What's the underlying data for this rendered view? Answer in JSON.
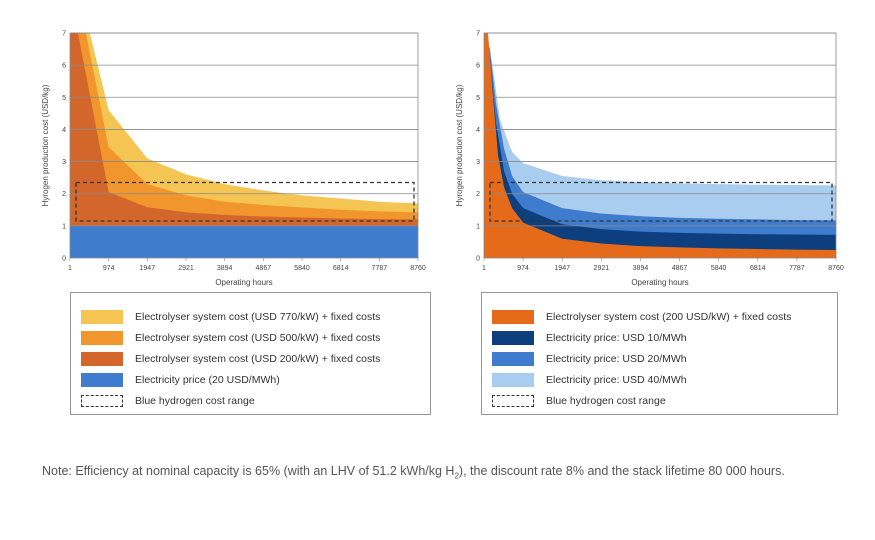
{
  "chart_data": [
    {
      "type": "area",
      "ylabel": "Hyrogen production cost (USD/kg)",
      "xlabel": "Operating hours",
      "ylim": [
        0,
        7
      ],
      "xlim": [
        1,
        8760
      ],
      "x_ticks": [
        "1",
        "974",
        "1947",
        "2921",
        "3894",
        "4867",
        "5840",
        "6814",
        "7787",
        "8760"
      ],
      "y_ticks": [
        "0",
        "1",
        "2",
        "3",
        "4",
        "5",
        "6",
        "7"
      ],
      "grid": true,
      "series": [
        {
          "name": "Electrolyser system cost (USD 770/kW) + fixed costs",
          "color": "#f4c552",
          "x": [
            1,
            500,
            974,
            1947,
            2921,
            3894,
            4867,
            5840,
            6814,
            7787,
            8760
          ],
          "values": [
            7.0,
            7.0,
            4.6,
            3.1,
            2.6,
            2.3,
            2.1,
            1.95,
            1.85,
            1.75,
            1.7
          ]
        },
        {
          "name": "Electrolyser system cost (USD 500/kW) + fixed costs",
          "color": "#f0962d",
          "x": [
            1,
            400,
            974,
            1947,
            2921,
            3894,
            4867,
            5840,
            6814,
            7787,
            8760
          ],
          "values": [
            7.0,
            7.0,
            3.45,
            2.3,
            1.95,
            1.75,
            1.65,
            1.57,
            1.5,
            1.45,
            1.42
          ]
        },
        {
          "name": "Electrolyser system cost (USD 200/kW) + fixed costs",
          "color": "#d3662a",
          "x": [
            1,
            200,
            974,
            1947,
            2921,
            3894,
            4867,
            5840,
            6814,
            7787,
            8760
          ],
          "values": [
            7.0,
            7.0,
            2.05,
            1.58,
            1.42,
            1.34,
            1.29,
            1.26,
            1.23,
            1.21,
            1.2
          ]
        },
        {
          "name": "Electricity price (20 USD/MWh)",
          "color": "#3f7ccd",
          "x": [
            1,
            8760
          ],
          "values": [
            1.0,
            1.0
          ]
        }
      ],
      "reference_range": {
        "name": "Blue hydrogen cost range",
        "ymin": 1.15,
        "ymax": 2.35
      }
    },
    {
      "type": "area",
      "ylabel": "Hyrogen production cost (USD/kg)",
      "xlabel": "Operating hours",
      "ylim": [
        0,
        7
      ],
      "xlim": [
        1,
        8760
      ],
      "x_ticks": [
        "1",
        "974",
        "1947",
        "2921",
        "3894",
        "4867",
        "5840",
        "6814",
        "7787",
        "8760"
      ],
      "y_ticks": [
        "0",
        "1",
        "2",
        "3",
        "4",
        "5",
        "6",
        "7"
      ],
      "grid": true,
      "series": [
        {
          "name": "Electricity price: USD 40/MWh",
          "color": "#a9cdee",
          "x": [
            1,
            200,
            400,
            700,
            974,
            1947,
            2921,
            3894,
            4867,
            5840,
            6814,
            7787,
            8760
          ],
          "values": [
            7.0,
            6.1,
            4.3,
            3.3,
            2.95,
            2.55,
            2.42,
            2.36,
            2.32,
            2.3,
            2.28,
            2.27,
            2.26
          ]
        },
        {
          "name": "Electricity price: USD 20/MWh",
          "color": "#3f7ccd",
          "x": [
            1,
            150,
            300,
            500,
            700,
            974,
            1947,
            2921,
            3894,
            4867,
            5840,
            6814,
            7787,
            8760
          ],
          "values": [
            7.0,
            6.5,
            4.8,
            3.4,
            2.55,
            2.05,
            1.55,
            1.38,
            1.3,
            1.25,
            1.22,
            1.2,
            1.18,
            1.17
          ]
        },
        {
          "name": "Electricity price: USD 10/MWh",
          "color": "#0d3f7e",
          "x": [
            1,
            150,
            300,
            500,
            700,
            974,
            1947,
            2921,
            3894,
            4867,
            5840,
            6814,
            7787,
            8760
          ],
          "values": [
            7.0,
            6.2,
            4.2,
            2.7,
            2.0,
            1.55,
            1.05,
            0.9,
            0.82,
            0.78,
            0.76,
            0.74,
            0.73,
            0.72
          ]
        },
        {
          "name": "Electrolyser system cost (200 USD/kW) + fixed costs",
          "color": "#e56a1a",
          "x": [
            1,
            100,
            200,
            350,
            500,
            700,
            974,
            1947,
            2921,
            3894,
            4867,
            5840,
            6814,
            7787,
            8760
          ],
          "values": [
            7.0,
            7.0,
            5.4,
            3.2,
            2.2,
            1.55,
            1.1,
            0.6,
            0.45,
            0.37,
            0.33,
            0.3,
            0.28,
            0.26,
            0.25
          ]
        }
      ],
      "reference_range": {
        "name": "Blue hydrogen cost range",
        "ymin": 1.15,
        "ymax": 2.35
      }
    }
  ],
  "legends": [
    {
      "items": [
        {
          "label": "Electrolyser system cost (USD 770/kW) + fixed costs",
          "color": "#f4c552",
          "style": "fill"
        },
        {
          "label": "Electrolyser system cost (USD 500/kW) + fixed costs",
          "color": "#f0962d",
          "style": "fill"
        },
        {
          "label": "Electrolyser system cost (USD 200/kW) + fixed costs",
          "color": "#d3662a",
          "style": "fill"
        },
        {
          "label": "Electricity price (20 USD/MWh)",
          "color": "#3f7ccd",
          "style": "fill"
        },
        {
          "label": "Blue hydrogen cost range",
          "color": "#333333",
          "style": "dashed"
        }
      ]
    },
    {
      "items": [
        {
          "label": "Electrolyser system cost (200 USD/kW) + fixed costs",
          "color": "#e56a1a",
          "style": "fill"
        },
        {
          "label": "Electricity price: USD 10/MWh",
          "color": "#0d3f7e",
          "style": "fill"
        },
        {
          "label": "Electricity price: USD 20/MWh",
          "color": "#3f7ccd",
          "style": "fill"
        },
        {
          "label": "Electricity price: USD 40/MWh",
          "color": "#a9cdee",
          "style": "fill"
        },
        {
          "label": "Blue hydrogen cost range",
          "color": "#333333",
          "style": "dashed"
        }
      ]
    }
  ],
  "note": {
    "prefix": "Note: Efficiency at nominal capacity is 65% (with an LHV of 51.2 kWh/kg H",
    "sub": "2",
    "suffix": "), the discount rate 8% and the stack lifetime 80 000 hours."
  }
}
